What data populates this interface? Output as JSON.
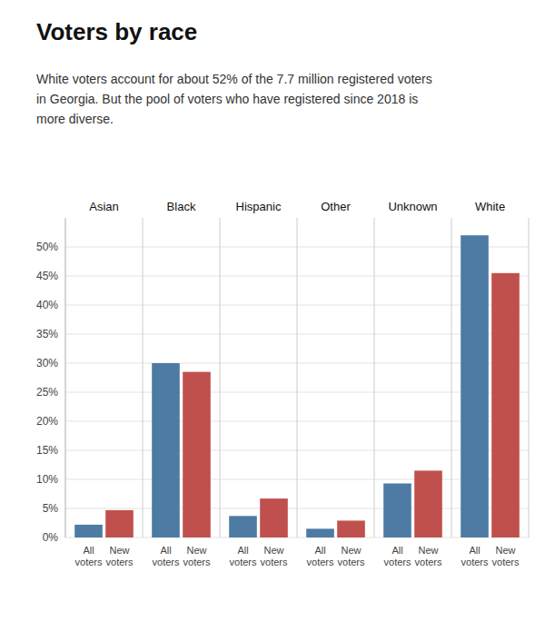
{
  "chart_data": {
    "type": "bar",
    "title": "Voters by race",
    "subtitle": "White voters account for about 52% of the 7.7 million registered voters\nin Georgia. But the pool of voters who have registered since 2018 is\nmore diverse.",
    "categories": [
      "Asian",
      "Black",
      "Hispanic",
      "Other",
      "Unknown",
      "White"
    ],
    "series": [
      {
        "name": "All\nvoters",
        "color": "#4d7ba3",
        "values": [
          2.2,
          30.0,
          3.7,
          1.5,
          9.3,
          52.0
        ]
      },
      {
        "name": "New\nvoters",
        "color": "#c0504d",
        "values": [
          4.7,
          28.5,
          6.7,
          2.9,
          11.5,
          45.5
        ]
      }
    ],
    "ylim": [
      0,
      55
    ],
    "yticks": [
      {
        "value": 0,
        "label": "0%"
      },
      {
        "value": 5,
        "label": "5%"
      },
      {
        "value": 10,
        "label": "10%"
      },
      {
        "value": 15,
        "label": "15%"
      },
      {
        "value": 20,
        "label": "20%"
      },
      {
        "value": 25,
        "label": "25%"
      },
      {
        "value": 30,
        "label": "30%"
      },
      {
        "value": 35,
        "label": "35%"
      },
      {
        "value": 40,
        "label": "40%"
      },
      {
        "value": 45,
        "label": "45%"
      },
      {
        "value": 50,
        "label": "50%"
      }
    ],
    "grid": true
  }
}
